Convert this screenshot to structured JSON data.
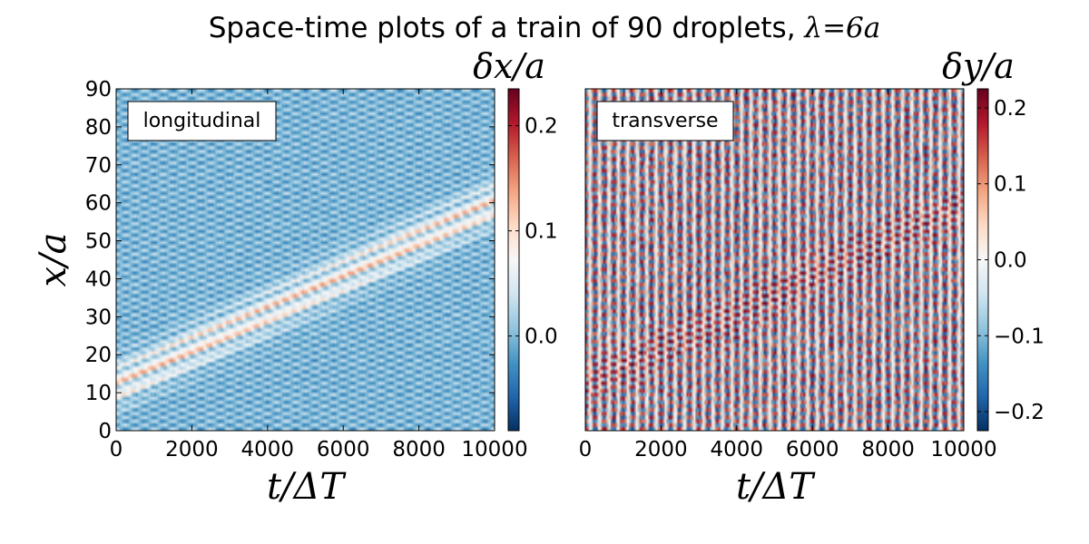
{
  "title": "Space-time plots of a train of 90 droplets, λ=6a",
  "title_plain": "Space-time plots of a train of 90 droplets, ",
  "title_math": "λ=6a",
  "chart_data": [
    {
      "type": "heatmap",
      "label": "longitudinal",
      "xlabel": "t/ΔT",
      "ylabel": "x/a",
      "colorbar_label": "δx/a",
      "xlim": [
        0,
        10000
      ],
      "ylim": [
        0,
        90
      ],
      "xticks": [
        0,
        2000,
        4000,
        6000,
        8000,
        10000
      ],
      "yticks": [
        0,
        10,
        20,
        30,
        40,
        50,
        60,
        70,
        80,
        90
      ],
      "clim": [
        -0.09,
        0.235
      ],
      "cbar_ticks": [
        0.0,
        0.1,
        0.2
      ],
      "cbar_tick_labels": [
        "0.0",
        "0.1",
        "0.2"
      ],
      "colormap": "RdBu",
      "pattern": {
        "diagonal_slope_droplets_per_step": 0.004,
        "bands": 45,
        "baseline": 0.0,
        "amplitude": 0.035,
        "front_amplitude": 0.12
      }
    },
    {
      "type": "heatmap",
      "label": "transverse",
      "xlabel": "t/ΔT",
      "ylabel": "",
      "colorbar_label": "δy/a",
      "xlim": [
        0,
        10000
      ],
      "ylim": [
        0,
        90
      ],
      "xticks": [
        0,
        2000,
        4000,
        6000,
        8000,
        10000
      ],
      "yticks": [],
      "clim": [
        -0.225,
        0.225
      ],
      "cbar_ticks": [
        0.2,
        0.1,
        0.0,
        -0.1,
        -0.2
      ],
      "cbar_tick_labels": [
        "0.2",
        "0.1",
        "0.0",
        "−0.1",
        "−0.2"
      ],
      "colormap": "RdBu",
      "pattern": {
        "diagonal_slope_droplets_per_step": 0.004,
        "bands": 45,
        "baseline": 0.0,
        "amplitude": 0.17,
        "front_amplitude": 0.05
      }
    }
  ],
  "colors": {
    "cmap_stops": [
      "#67001f",
      "#b2182b",
      "#d6604d",
      "#f4a582",
      "#fddbc7",
      "#f7f7f7",
      "#d1e5f0",
      "#92c5de",
      "#4393c3",
      "#2166ac",
      "#053061"
    ]
  }
}
